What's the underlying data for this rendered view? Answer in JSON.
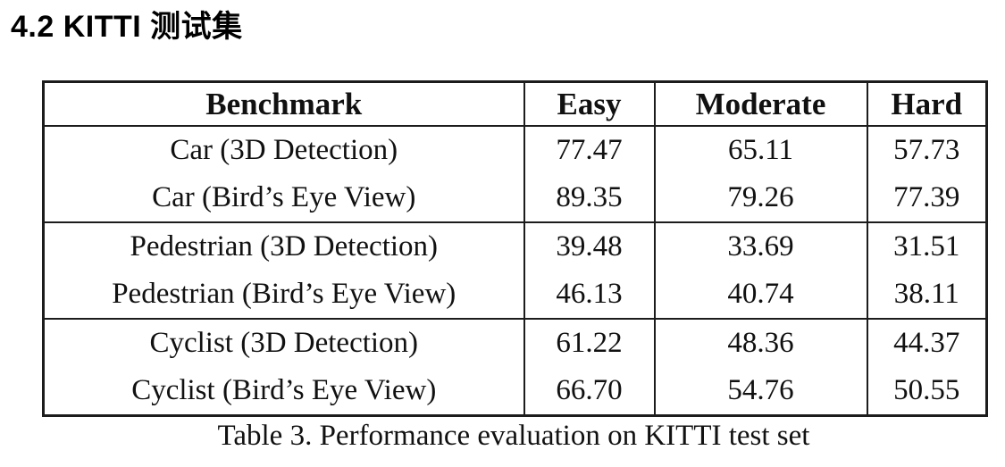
{
  "heading": "4.2 KITTI 测试集",
  "table": {
    "headers": [
      "Benchmark",
      "Easy",
      "Moderate",
      "Hard"
    ],
    "rows": [
      {
        "benchmark": "Car (3D Detection)",
        "easy": "77.47",
        "moderate": "65.11",
        "hard": "57.73"
      },
      {
        "benchmark": "Car (Bird’s Eye View)",
        "easy": "89.35",
        "moderate": "79.26",
        "hard": "77.39"
      },
      {
        "benchmark": "Pedestrian (3D Detection)",
        "easy": "39.48",
        "moderate": "33.69",
        "hard": "31.51"
      },
      {
        "benchmark": "Pedestrian (Bird’s Eye View)",
        "easy": "46.13",
        "moderate": "40.74",
        "hard": "38.11"
      },
      {
        "benchmark": "Cyclist (3D Detection)",
        "easy": "61.22",
        "moderate": "48.36",
        "hard": "44.37"
      },
      {
        "benchmark": "Cyclist (Bird’s Eye View)",
        "easy": "66.70",
        "moderate": "54.76",
        "hard": "50.55"
      }
    ],
    "caption": "Table 3. Performance evaluation on KITTI test set"
  }
}
